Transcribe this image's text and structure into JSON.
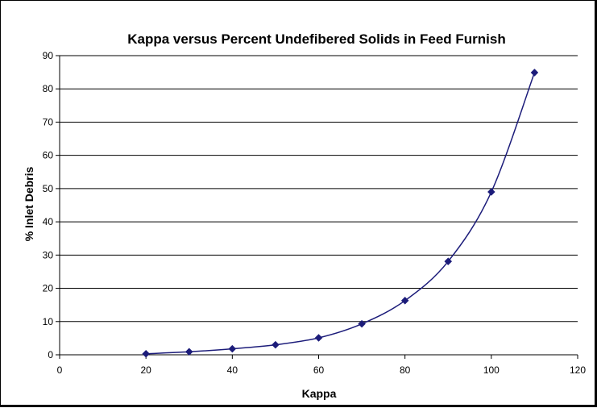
{
  "chart_data": {
    "type": "scatter",
    "title": "Kappa versus Percent Undefibered Solids in Feed Furnish",
    "xlabel": "Kappa",
    "ylabel": "% Inlet Debris",
    "xlim": [
      0,
      120
    ],
    "ylim": [
      0,
      90
    ],
    "x_ticks": [
      "0",
      "20",
      "40",
      "60",
      "80",
      "100",
      "120"
    ],
    "y_ticks": [
      "0",
      "10",
      "20",
      "30",
      "40",
      "50",
      "60",
      "70",
      "80",
      "90"
    ],
    "grid": "horizontal",
    "smooth_line": true,
    "legend": "none",
    "series": [
      {
        "color": "#1c1c7a",
        "marker": "diamond",
        "points": [
          {
            "x": 20,
            "y": 0.3
          },
          {
            "x": 30,
            "y": 0.9
          },
          {
            "x": 40,
            "y": 1.8
          },
          {
            "x": 50,
            "y": 3.0
          },
          {
            "x": 60,
            "y": 5.1
          },
          {
            "x": 70,
            "y": 9.3
          },
          {
            "x": 80,
            "y": 16.3
          },
          {
            "x": 90,
            "y": 28.1
          },
          {
            "x": 100,
            "y": 49.0
          },
          {
            "x": 110,
            "y": 84.9
          }
        ]
      }
    ]
  }
}
